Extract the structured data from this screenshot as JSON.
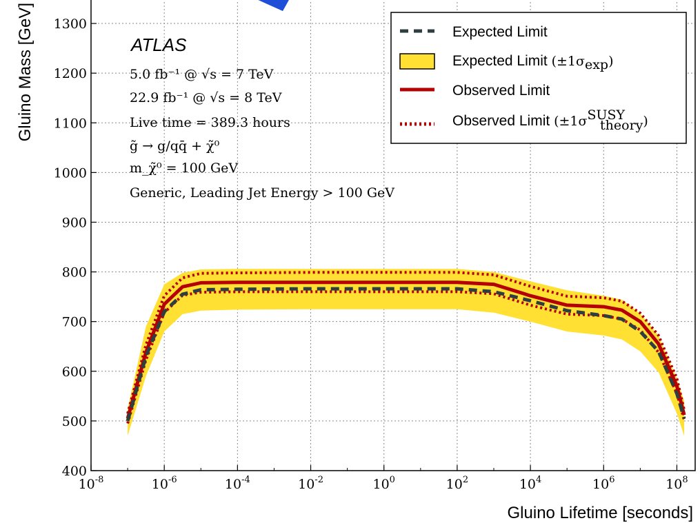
{
  "chart_data": {
    "type": "line",
    "xlabel": "Gluino Lifetime [seconds]",
    "ylabel": "Gluino Mass [GeV]",
    "xscale": "log10",
    "xlim_exp": [
      -8,
      8.5
    ],
    "ylim": [
      400,
      1350
    ],
    "grid": true,
    "legend_position": "top-right",
    "x_tick_labels": [
      "10^-8",
      "10^-6",
      "10^-4",
      "10^-2",
      "10^0",
      "10^2",
      "10^4",
      "10^6",
      "10^8"
    ],
    "y_tick_labels": [
      "400",
      "500",
      "600",
      "700",
      "800",
      "900",
      "1000",
      "1100",
      "1200",
      "1300"
    ],
    "annotations": {
      "experiment": "ATLAS",
      "lines": [
        "5.0  fb⁻¹ @ √s = 7 TeV",
        "22.9 fb⁻¹ @ √s = 8 TeV",
        "Live time = 389.3 hours",
        "g̃ → g/qq̄ + χ̃⁰",
        "m_χ̃⁰ = 100 GeV",
        "Generic, Leading Jet Energy > 100 GeV"
      ]
    },
    "log10_lifetime": [
      -7,
      -6.5,
      -6,
      -5.5,
      -5,
      -4,
      -2,
      0,
      2,
      3,
      4,
      5,
      6,
      6.5,
      7,
      7.5,
      8,
      8.2
    ],
    "series": [
      {
        "name": "Expected Limit",
        "style": "dashed",
        "color": "#2f3f3f",
        "values": [
          500,
          630,
          720,
          755,
          764,
          765,
          766,
          766,
          766,
          760,
          742,
          722,
          712,
          705,
          680,
          640,
          555,
          505
        ]
      },
      {
        "name": "Expected Limit (±1σ_exp)",
        "style": "band",
        "color": "#ffe033",
        "upper": [
          525,
          690,
          775,
          798,
          805,
          806,
          806,
          806,
          806,
          800,
          781,
          763,
          752,
          744,
          716,
          672,
          585,
          540
        ],
        "lower": [
          470,
          590,
          680,
          715,
          722,
          724,
          725,
          725,
          725,
          718,
          700,
          680,
          672,
          664,
          640,
          598,
          515,
          470
        ]
      },
      {
        "name": "Observed Limit",
        "style": "solid",
        "color": "#b40000",
        "values": [
          505,
          638,
          735,
          770,
          778,
          779,
          779,
          779,
          779,
          775,
          752,
          733,
          730,
          723,
          700,
          655,
          570,
          512
        ]
      },
      {
        "name": "Observed Limit (±1σ_theory^SUSY)",
        "style": "dotted",
        "color": "#b40000",
        "upper": [
          515,
          653,
          752,
          788,
          797,
          798,
          799,
          799,
          799,
          794,
          771,
          751,
          748,
          741,
          717,
          672,
          585,
          522
        ],
        "lower": [
          495,
          623,
          718,
          753,
          759,
          760,
          760,
          760,
          760,
          756,
          733,
          715,
          712,
          705,
          683,
          638,
          555,
          502
        ]
      }
    ]
  },
  "legend": [
    {
      "key": "expected",
      "label": "Expected Limit",
      "suffix": ""
    },
    {
      "key": "band",
      "label": "Expected Limit ",
      "suffix": "(±1σ"
    },
    {
      "key": "observed",
      "label": "Observed Limit",
      "suffix": ""
    },
    {
      "key": "theory",
      "label": "Observed Limit ",
      "suffix": "(±1σ"
    }
  ],
  "legend_sub": {
    "band": "exp",
    "theory_sub": "theory",
    "theory_sup": "SUSY",
    "close": ")"
  }
}
